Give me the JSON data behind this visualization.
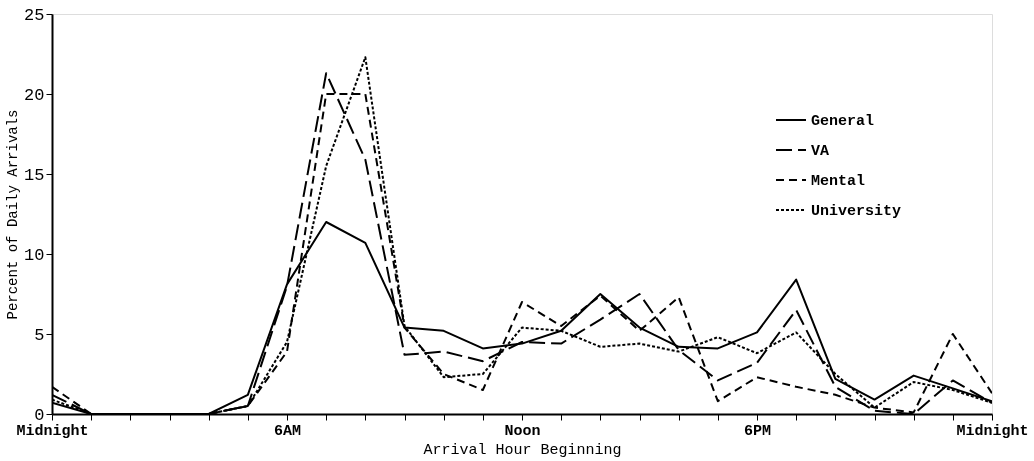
{
  "chart_data": {
    "type": "line",
    "xlabel": "Arrival Hour Beginning",
    "ylabel": "Percent of Daily Arrivals",
    "categories": [
      "Midnight",
      null,
      null,
      null,
      null,
      null,
      "6AM",
      null,
      null,
      null,
      null,
      null,
      "Noon",
      null,
      null,
      null,
      null,
      null,
      "6PM",
      null,
      null,
      null,
      null,
      null,
      "Midnight"
    ],
    "series": [
      {
        "name": "General",
        "color": "#000000",
        "line_style": "solid",
        "values": [
          0.7,
          0,
          0,
          0,
          0,
          1.2,
          8.1,
          12.0,
          10.7,
          5.4,
          5.2,
          4.1,
          4.4,
          5.2,
          7.5,
          5.4,
          4.2,
          4.1,
          5.1,
          8.4,
          2.2,
          0.9,
          2.4,
          1.6,
          0.8
        ]
      },
      {
        "name": "VA",
        "color": "#000000",
        "line_style": "longdash",
        "values": [
          1.2,
          0,
          0,
          0,
          0,
          0.5,
          8.0,
          21.3,
          15.9,
          3.7,
          3.9,
          3.3,
          4.5,
          4.4,
          5.9,
          7.5,
          4.0,
          2.1,
          3.2,
          6.5,
          1.7,
          0.2,
          0,
          2.1,
          0.7
        ]
      },
      {
        "name": "Mental",
        "color": "#000000",
        "line_style": "dashed",
        "values": [
          1.7,
          0,
          0,
          0,
          0,
          0.5,
          3.9,
          20.0,
          20.0,
          5.4,
          2.5,
          1.5,
          7.0,
          5.5,
          7.4,
          5.2,
          7.3,
          0.8,
          2.3,
          1.7,
          1.2,
          0.4,
          0.1,
          5.0,
          1.3
        ]
      },
      {
        "name": "University",
        "color": "#000000",
        "line_style": "dotted",
        "values": [
          0.9,
          0,
          0,
          0,
          0,
          0.5,
          4.5,
          15.5,
          22.3,
          5.5,
          2.3,
          2.5,
          5.4,
          5.2,
          4.2,
          4.4,
          3.9,
          4.8,
          3.8,
          5.1,
          2.5,
          0.4,
          2.0,
          1.5,
          0.7
        ]
      }
    ],
    "ylim": [
      0,
      25
    ],
    "yticks": [
      0,
      5,
      10,
      15,
      20,
      25
    ],
    "grid": false,
    "legend": "top right",
    "marker": "none"
  }
}
